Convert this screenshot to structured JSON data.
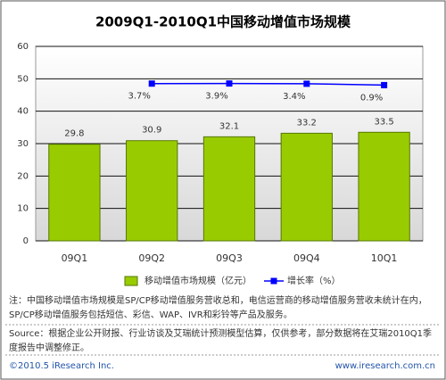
{
  "chart_data": {
    "type": "bar+line",
    "title": "2009Q1-2010Q1中国移动增值市场规模",
    "categories": [
      "09Q1",
      "09Q2",
      "09Q3",
      "09Q4",
      "10Q1"
    ],
    "series": [
      {
        "name": "移动增值市场规模（亿元）",
        "type": "bar",
        "color": "#99cc00",
        "values": [
          29.8,
          30.9,
          32.1,
          33.2,
          33.5
        ]
      },
      {
        "name": "增长率（%）",
        "type": "line",
        "axis": "y2",
        "color": "#0000ff",
        "values": [
          null,
          3.7,
          3.9,
          3.4,
          0.9
        ],
        "value_labels": [
          null,
          "3.7%",
          "3.9%",
          "3.4%",
          "0.9%"
        ]
      }
    ],
    "ylim": [
      0,
      60
    ],
    "yticks": [
      0,
      10,
      20,
      30,
      40,
      50,
      60
    ],
    "y2lim": [
      -285,
      72
    ],
    "grid": true,
    "note": "注：中国移动增值市场规模是SP/CP移动增值服务营收总和，电信运营商的移动增值服务营收未统计在内，SP/CP移动增值服务包括短信、彩信、WAP、IVR和彩铃等产品及服务。",
    "source": "Source：根据企业公开财报、行业访谈及艾瑞统计预测模型估算，仅供参考，部分数据将在艾瑞2010Q1季度报告中调整修正。",
    "copyright": "©2010.5 iResearch Inc.",
    "website": "www.iresearch.com.cn"
  }
}
